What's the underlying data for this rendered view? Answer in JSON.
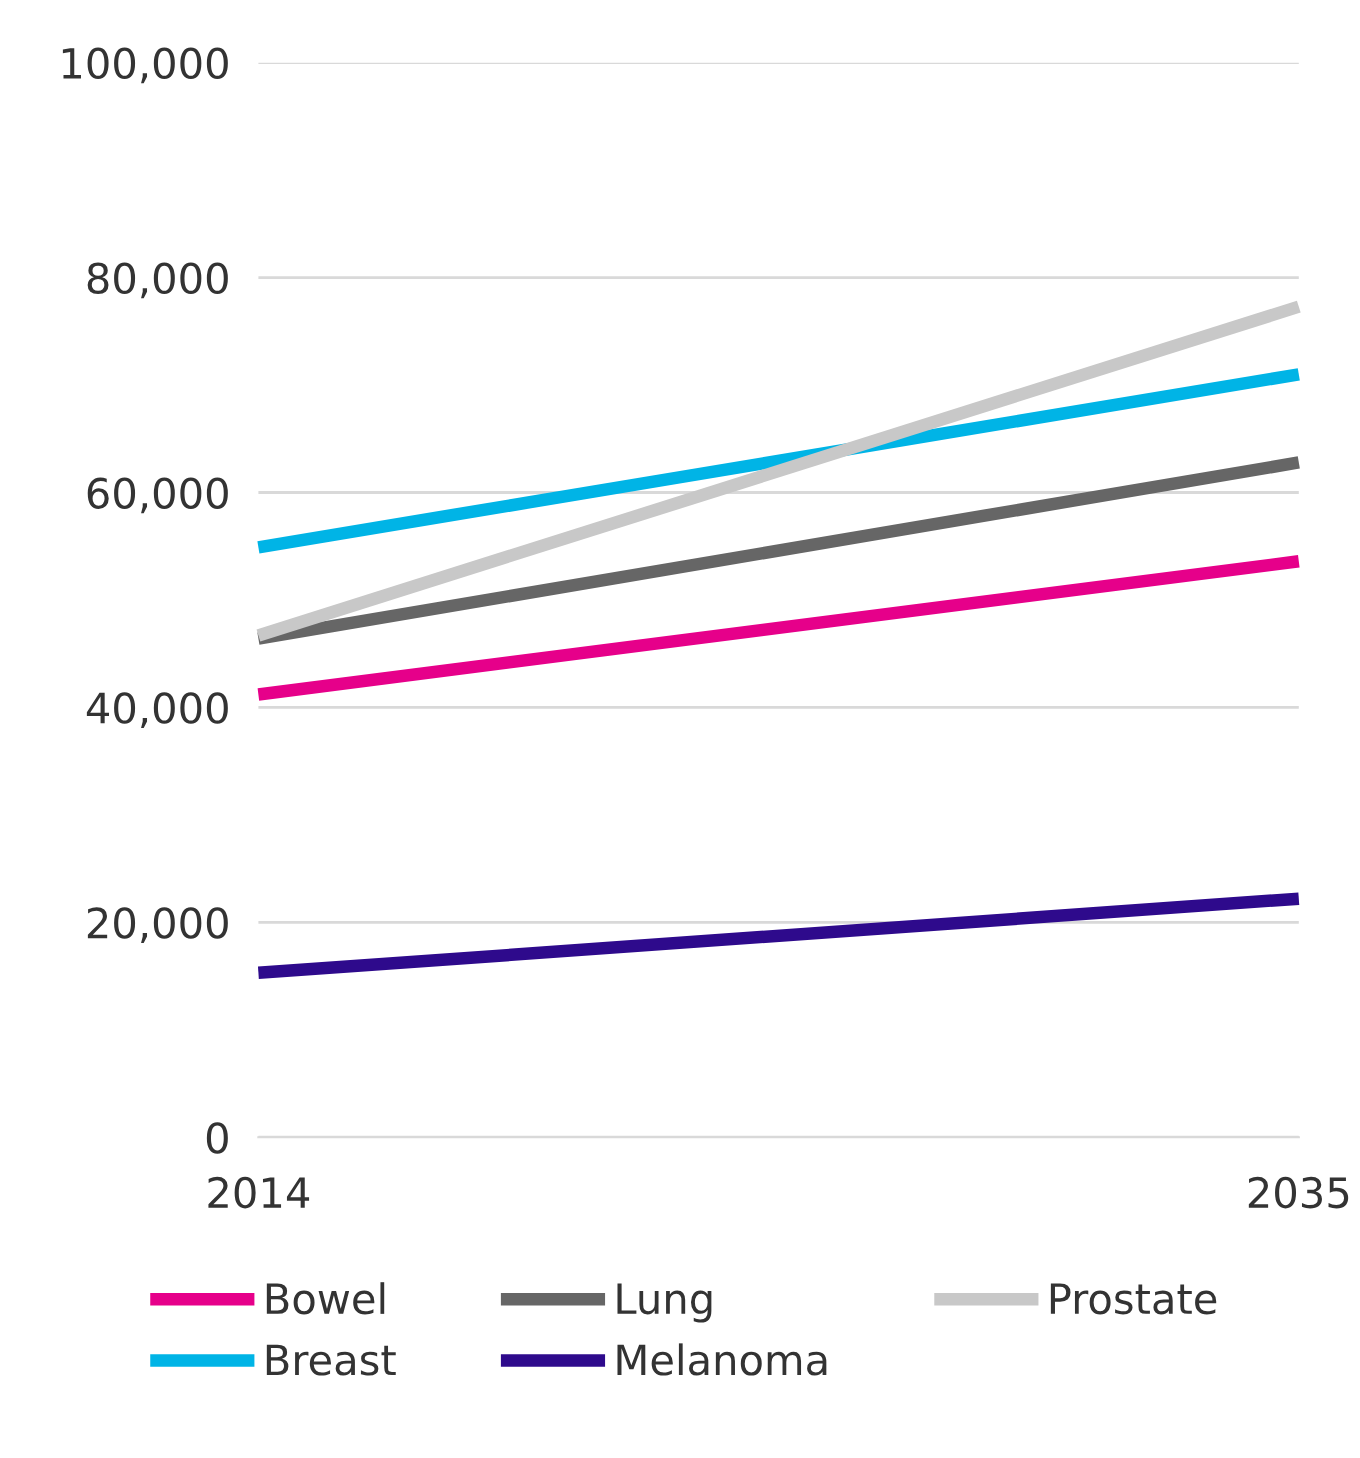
{
  "chart_data": {
    "type": "line",
    "x": [
      2014,
      2035
    ],
    "xlim": [
      2014,
      2035
    ],
    "xticks": [
      2014,
      2035
    ],
    "ylim": [
      0,
      100000
    ],
    "yticks": [
      {
        "value": 0,
        "label": "0"
      },
      {
        "value": 20000,
        "label": "20,000"
      },
      {
        "value": 40000,
        "label": "40,000"
      },
      {
        "value": 60000,
        "label": "60,000"
      },
      {
        "value": 80000,
        "label": "80,000"
      },
      {
        "value": 100000,
        "label": "100,000"
      }
    ],
    "grid": "y",
    "legend": "bottom",
    "marker": "none",
    "line_style": "solid",
    "series": [
      {
        "name": "Bowel",
        "color": "#e6008a",
        "values": [
          41200,
          53600
        ]
      },
      {
        "name": "Breast",
        "color": "#00b4e6",
        "values": [
          54900,
          71000
        ]
      },
      {
        "name": "Lung",
        "color": "#666666",
        "values": [
          46400,
          62800
        ]
      },
      {
        "name": "Melanoma",
        "color": "#2e0a8c",
        "values": [
          15300,
          22200
        ]
      },
      {
        "name": "Prostate",
        "color": "#c8c8c8",
        "values": [
          46700,
          77300
        ]
      }
    ]
  }
}
